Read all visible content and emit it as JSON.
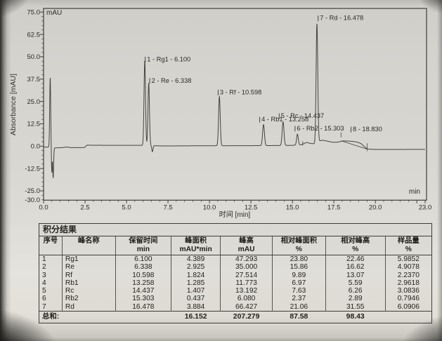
{
  "chart": {
    "y_axis_title": "Absorbance [mAU]",
    "x_axis_title": "时间 [min]",
    "top_unit_label": "mAU",
    "bottom_unit_label": "min"
  },
  "chart_data": {
    "type": "line",
    "title": "",
    "xlabel": "时间 [min]",
    "ylabel": "Absorbance [mAU]",
    "xlim": [
      0,
      23
    ],
    "ylim": [
      -30,
      75
    ],
    "grid": false,
    "x_tick_labels": [
      "0.0",
      "2.5",
      "5.0",
      "7.5",
      "10.0",
      "12.5",
      "15.0",
      "17.5",
      "20.0",
      "23.0"
    ],
    "y_tick_labels": [
      "75.0",
      "62.5",
      "50.0",
      "37.5",
      "25.0",
      "12.5",
      "0.0",
      "-12.5",
      "-25.0",
      "-30.0"
    ],
    "peaks": [
      {
        "no": 1,
        "name": "Rg1",
        "rt": 6.1,
        "height": 47.293,
        "sigma": 0.045,
        "label": "1 - Rg1 - 6.100",
        "label_t": 6.13,
        "label_mau": 47.5
      },
      {
        "no": 2,
        "name": "Re",
        "rt": 6.338,
        "height": 35.0,
        "sigma": 0.045,
        "label": "2 - Re - 6.338",
        "label_t": 6.4,
        "label_mau": 35.5
      },
      {
        "no": 3,
        "name": "Rf",
        "rt": 10.598,
        "height": 27.514,
        "sigma": 0.05,
        "label": "3 - Rf - 10.598",
        "label_t": 10.52,
        "label_mau": 29.0
      },
      {
        "no": 4,
        "name": "Rb1",
        "rt": 13.258,
        "height": 11.773,
        "sigma": 0.055,
        "label": "4 - Rb1 - 13.258",
        "label_t": 13.03,
        "label_mau": 13.8
      },
      {
        "no": 5,
        "name": "Rc",
        "rt": 14.437,
        "height": 13.192,
        "sigma": 0.055,
        "label": "5 - Rc - 14.437",
        "label_t": 14.2,
        "label_mau": 15.8
      },
      {
        "no": 6,
        "name": "Rb2",
        "rt": 15.303,
        "height": 6.08,
        "sigma": 0.05,
        "label": "6 - Rb2 - 15.303",
        "label_t": 15.16,
        "label_mau": 8.8
      },
      {
        "no": 7,
        "name": "Rd",
        "rt": 16.478,
        "height": 66.427,
        "sigma": 0.05,
        "label": "7 - Rd - 16.478",
        "label_t": 16.55,
        "label_mau": 70.5
      },
      {
        "no": 8,
        "name": "",
        "rt": 18.83,
        "height": 0,
        "sigma": 0.1,
        "label": "8 - 18.830",
        "label_t": 18.53,
        "label_mau": 8.3
      }
    ],
    "artifacts": [
      {
        "rt": 0.4,
        "h": 38.8,
        "sigma": 0.03
      },
      {
        "rt": 0.495,
        "h": -14.0,
        "sigma": 0.022
      },
      {
        "rt": 0.578,
        "h": -17.0,
        "sigma": 0.028
      },
      {
        "rt": 6.56,
        "h": -3.4,
        "sigma": 0.035
      }
    ],
    "baseline_points": [
      [
        0,
        -0.5
      ],
      [
        0.32,
        -0.55
      ],
      [
        0.7,
        -0.95
      ],
      [
        1.1,
        -0.85
      ],
      [
        1.42,
        -0.45
      ],
      [
        1.6,
        -0.8
      ],
      [
        2.45,
        -0.8
      ],
      [
        2.62,
        0.55
      ],
      [
        4.0,
        0.45
      ],
      [
        5.9,
        0.45
      ],
      [
        7.2,
        0.1
      ],
      [
        9.0,
        0.2
      ],
      [
        11.5,
        0.25
      ],
      [
        13.0,
        0.3
      ],
      [
        14.0,
        0.35
      ],
      [
        15.0,
        0.45
      ],
      [
        15.55,
        0.8
      ],
      [
        15.85,
        2.1
      ],
      [
        16.1,
        1.5
      ],
      [
        16.35,
        1.3
      ],
      [
        16.62,
        2.9
      ],
      [
        16.82,
        3.3
      ],
      [
        17.05,
        2.9
      ],
      [
        17.45,
        2.15
      ],
      [
        17.75,
        2.25
      ],
      [
        18.05,
        2.95
      ],
      [
        18.35,
        2.85
      ],
      [
        18.7,
        2.6
      ],
      [
        18.95,
        2.15
      ],
      [
        19.15,
        1.35
      ],
      [
        19.45,
        -1.2
      ],
      [
        19.62,
        -1.7
      ],
      [
        20.0,
        -1.85
      ],
      [
        23,
        -1.8
      ]
    ],
    "integration_line": [
      [
        17.95,
        2.95
      ],
      [
        19.5,
        -1.65
      ]
    ],
    "extra_ticks": [
      {
        "t": 15.62,
        "mau": 1.6,
        "len": 6
      },
      {
        "t": 17.93,
        "mau": 6.3,
        "len": 7
      },
      {
        "t": 19.5,
        "mau": -0.6,
        "len": 11
      }
    ]
  },
  "table": {
    "title": "积分结果",
    "columns": [
      {
        "label": "序号",
        "unit": ""
      },
      {
        "label": "峰名称",
        "unit": ""
      },
      {
        "label": "保留时间",
        "unit": "min"
      },
      {
        "label": "峰面积",
        "unit": "mAU*min"
      },
      {
        "label": "峰高",
        "unit": "mAU"
      },
      {
        "label": "相对峰面积",
        "unit": "%"
      },
      {
        "label": "相对峰高",
        "unit": "%"
      },
      {
        "label": "样品量",
        "unit": "%"
      }
    ],
    "rows": [
      [
        "1",
        "Rg1",
        "6.100",
        "4.389",
        "47.293",
        "23.80",
        "22.46",
        "5.9852"
      ],
      [
        "2",
        "Re",
        "6.338",
        "2.925",
        "35.000",
        "15.86",
        "16.62",
        "4.9078"
      ],
      [
        "3",
        "Rf",
        "10.598",
        "1.824",
        "27.514",
        "9.89",
        "13.07",
        "2.2370"
      ],
      [
        "4",
        "Rb1",
        "13.258",
        "1.285",
        "11.773",
        "6.97",
        "5.59",
        "2.9618"
      ],
      [
        "5",
        "Rc",
        "14.437",
        "1.407",
        "13.192",
        "7.63",
        "6.26",
        "3.0836"
      ],
      [
        "6",
        "Rb2",
        "15.303",
        "0.437",
        "6.080",
        "2.37",
        "2.89",
        "0.7946"
      ],
      [
        "7",
        "Rd",
        "16.478",
        "3.884",
        "66.427",
        "21.06",
        "31.55",
        "6.0906"
      ]
    ],
    "total": {
      "label": "总和:",
      "values": [
        "16.152",
        "207.279",
        "87.58",
        "98.43",
        ""
      ]
    }
  }
}
